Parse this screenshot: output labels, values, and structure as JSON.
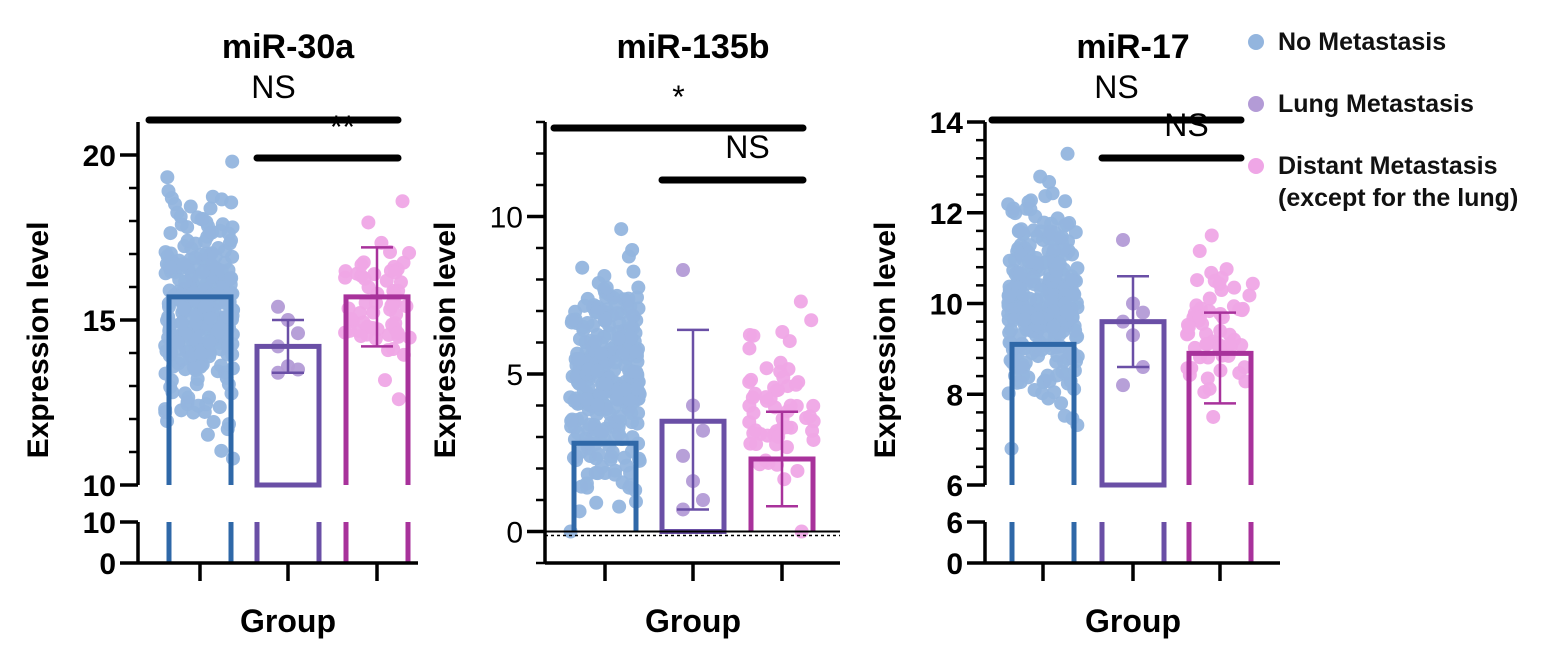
{
  "colors": {
    "no_metastasis_dot": "#93B5DE",
    "no_metastasis_bar": "#2F68A8",
    "lung_metastasis_dot": "#B39BD6",
    "lung_metastasis_bar": "#6A4FA6",
    "distant_metastasis_dot": "#EFA6E6",
    "distant_metastasis_bar": "#A8329B",
    "axis": "#000000"
  },
  "legend": {
    "items": [
      {
        "label": "No Metastasis",
        "color_key": "no_metastasis_dot"
      },
      {
        "label": "Lung Metastasis",
        "color_key": "lung_metastasis_dot"
      },
      {
        "label": "Distant Metastasis",
        "label_line2": "(except for the lung)",
        "color_key": "distant_metastasis_dot"
      }
    ]
  },
  "chart_data": [
    {
      "type": "bar",
      "title": "miR-30a",
      "xlabel": "Group",
      "ylabel": "Expression level",
      "y_axis_broken": true,
      "ylim_upper": [
        10,
        21
      ],
      "upper_ticks": [
        10,
        15,
        20
      ],
      "lower_ticks": [
        0,
        10
      ],
      "categories": [
        "No Metastasis",
        "Lung Metastasis",
        "Distant Metastasis (except for the lung)"
      ],
      "means": [
        15.7,
        14.2,
        15.7
      ],
      "error_bars": [
        null,
        [
          13.4,
          15.0
        ],
        [
          14.2,
          17.2
        ]
      ],
      "points": [
        {
          "n": 300,
          "min": 10.8,
          "max": 19.8
        },
        {
          "n": 7,
          "values": [
            15.4,
            15.0,
            14.6,
            14.2,
            13.6,
            13.5,
            13.4
          ]
        },
        {
          "n": 60,
          "min": 12.6,
          "max": 18.6
        }
      ],
      "significance": [
        {
          "label": "NS",
          "from": 0,
          "to": 2
        },
        {
          "label": "**",
          "from": 1,
          "to": 2
        }
      ]
    },
    {
      "type": "bar",
      "title": "miR-135b",
      "xlabel": "Group",
      "ylabel": "Expression level",
      "y_axis_broken": false,
      "ylim": [
        -1,
        13
      ],
      "ticks": [
        0,
        5,
        10
      ],
      "categories": [
        "No Metastasis",
        "Lung Metastasis",
        "Distant Metastasis (except for the lung)"
      ],
      "means": [
        2.8,
        3.5,
        2.3
      ],
      "error_bars": [
        null,
        [
          0.7,
          6.4
        ],
        [
          0.8,
          3.8
        ]
      ],
      "points": [
        {
          "n": 300,
          "min": 0.0,
          "max": 9.6
        },
        {
          "n": 7,
          "values": [
            8.3,
            4.0,
            3.2,
            2.4,
            1.6,
            1.0,
            0.7
          ]
        },
        {
          "n": 60,
          "min": 0.0,
          "max": 7.3
        }
      ],
      "significance": [
        {
          "label": "*",
          "from": 0,
          "to": 2
        },
        {
          "label": "NS",
          "from": 1,
          "to": 2
        }
      ]
    },
    {
      "type": "bar",
      "title": "miR-17",
      "xlabel": "Group",
      "ylabel": "Expression level",
      "y_axis_broken": true,
      "ylim_upper": [
        6,
        14
      ],
      "upper_ticks": [
        6,
        8,
        10,
        12,
        14
      ],
      "lower_ticks": [
        0,
        6
      ],
      "categories": [
        "No Metastasis",
        "Lung Metastasis",
        "Distant Metastasis (except for the lung)"
      ],
      "means": [
        9.1,
        9.6,
        8.9
      ],
      "error_bars": [
        null,
        [
          8.6,
          10.6
        ],
        [
          7.8,
          9.8
        ]
      ],
      "points": [
        {
          "n": 300,
          "min": 6.8,
          "max": 13.3
        },
        {
          "n": 7,
          "values": [
            11.4,
            10.0,
            9.8,
            9.6,
            9.3,
            8.6,
            8.2
          ]
        },
        {
          "n": 60,
          "min": 7.5,
          "max": 11.5
        }
      ],
      "significance": [
        {
          "label": "NS",
          "from": 0,
          "to": 2
        },
        {
          "label": "NS",
          "from": 1,
          "to": 2
        }
      ]
    }
  ]
}
